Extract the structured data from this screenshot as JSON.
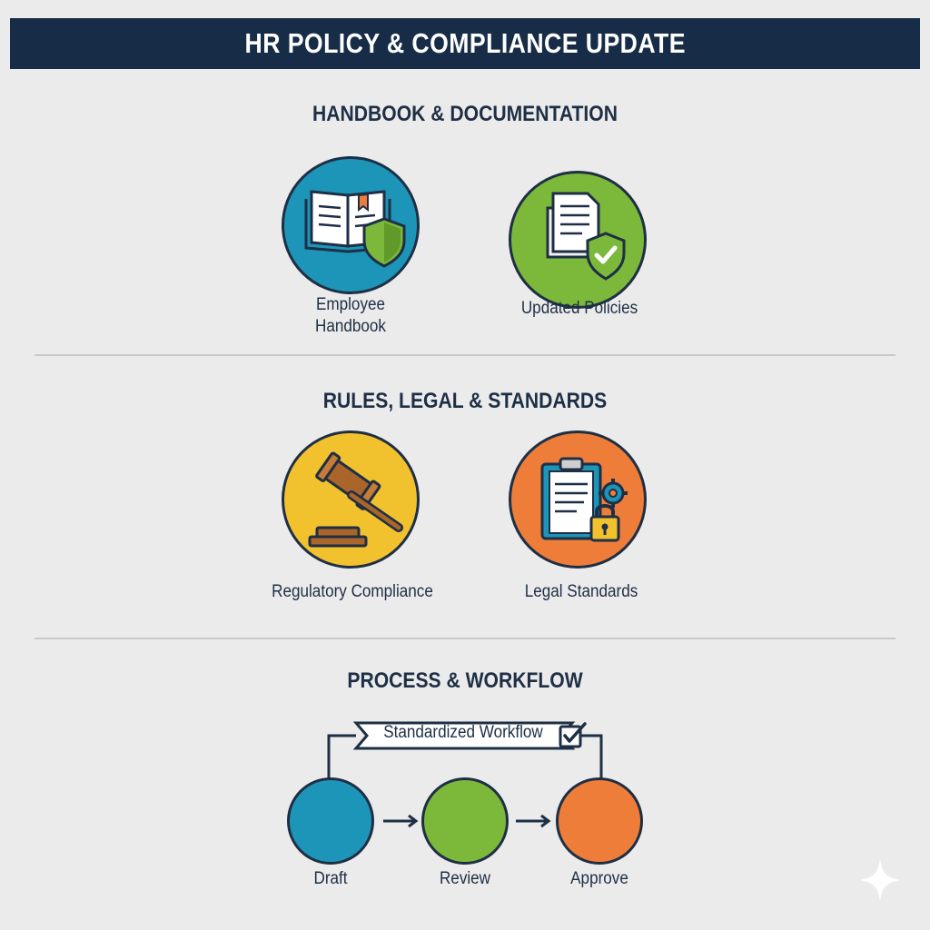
{
  "header": {
    "title": "HR POLICY & COMPLIANCE UPDATE"
  },
  "sections": [
    {
      "heading": "HANDBOOK & DOCUMENTATION",
      "cards": [
        {
          "label": "Employee\nHandbook",
          "icon": "open-book-shield-icon",
          "color": "#1d95b8"
        },
        {
          "label": "Updated Policies",
          "icon": "documents-check-shield-icon",
          "color": "#7cb83a"
        }
      ]
    },
    {
      "heading": "RULES, LEGAL & STANDARDS",
      "cards": [
        {
          "label": "Regulatory Compliance",
          "icon": "gavel-icon",
          "color": "#f2c12e"
        },
        {
          "label": "Legal Standards",
          "icon": "clipboard-lock-gear-icon",
          "color": "#ee7d3a"
        }
      ]
    },
    {
      "heading": "PROCESS & WORKFLOW",
      "workflow": {
        "banner_label": "Standardized Workflow",
        "banner_icon": "checkbox-icon",
        "steps": [
          {
            "label": "Draft",
            "color": "#1d95b8"
          },
          {
            "label": "Review",
            "color": "#7cb83a"
          },
          {
            "label": "Approve",
            "color": "#ee7d3a"
          }
        ]
      }
    }
  ],
  "colors": {
    "navy": "#172d47",
    "text": "#1e2f45",
    "background": "#ebebeb"
  }
}
